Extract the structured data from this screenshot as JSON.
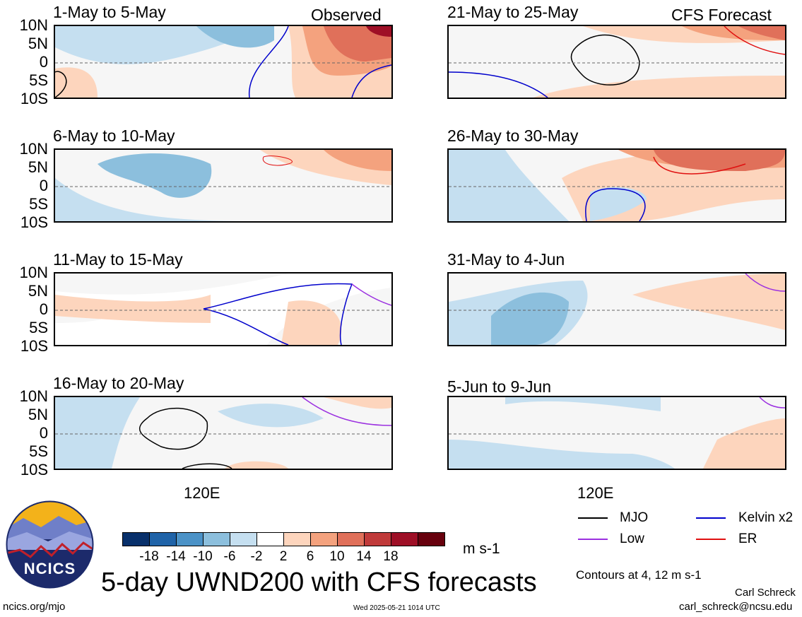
{
  "panels": [
    {
      "title": "1-May to 5-May",
      "tag": "Observed"
    },
    {
      "title": "6-May to 10-May",
      "tag": ""
    },
    {
      "title": "11-May to 15-May",
      "tag": ""
    },
    {
      "title": "16-May to 20-May",
      "tag": ""
    },
    {
      "title": "21-May to 25-May",
      "tag": "CFS Forecast"
    },
    {
      "title": "26-May to 30-May",
      "tag": ""
    },
    {
      "title": "31-May to 4-Jun",
      "tag": ""
    },
    {
      "title": "5-Jun to 9-Jun",
      "tag": ""
    }
  ],
  "lat_labels": [
    "10N",
    "5N",
    "0",
    "5S",
    "10S"
  ],
  "lon_label": "120E",
  "colorbar": {
    "labels": [
      "-18",
      "-14",
      "-10",
      "-6",
      "-2",
      "2",
      "6",
      "10",
      "14",
      "18"
    ],
    "colors": [
      "#08306b",
      "#1f63a8",
      "#4b92c7",
      "#8cbfdd",
      "#c5dff0",
      "#ffffff",
      "#fdd5bd",
      "#f4a27e",
      "#e0705a",
      "#c03a3a",
      "#9e0f26",
      "#67000d"
    ],
    "units": "m s-1"
  },
  "legend": {
    "items": [
      {
        "label": "MJO",
        "color": "#000000"
      },
      {
        "label": "Kelvin x2",
        "color": "#0000cc"
      },
      {
        "label": "Low",
        "color": "#9b30e0"
      },
      {
        "label": "ER",
        "color": "#e01010"
      }
    ],
    "contour_note": "Contours at 4, 12 m s-1"
  },
  "main_title": "5-day UWND200 with CFS forecasts",
  "logo_text": "NCICS",
  "footer": {
    "url": "ncics.org/mjo",
    "timestamp": "Wed 2025-05-21 1014 UTC",
    "author": "Carl Schreck",
    "email": "carl_schreck@ncsu.edu"
  }
}
